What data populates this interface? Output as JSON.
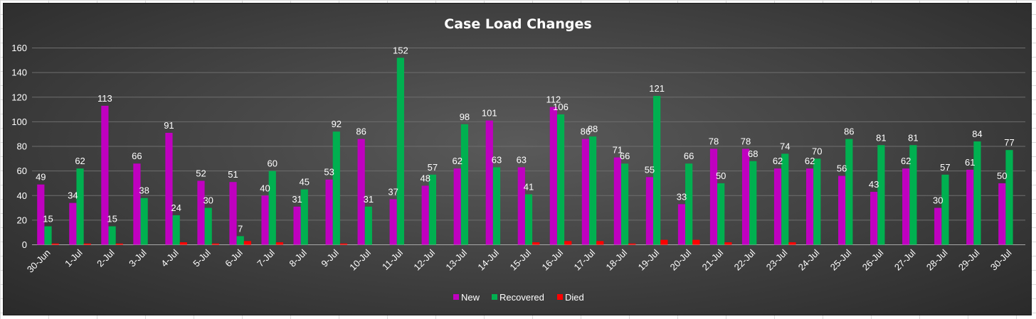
{
  "chart_data": {
    "type": "bar",
    "title": "Case Load Changes",
    "xlabel": "",
    "ylabel": "",
    "ylim": [
      0,
      160
    ],
    "yticks": [
      0,
      20,
      40,
      60,
      80,
      100,
      120,
      140,
      160
    ],
    "grid": "horizontal",
    "legend_position": "bottom",
    "categories": [
      "30-Jun",
      "1-Jul",
      "2-Jul",
      "3-Jul",
      "4-Jul",
      "5-Jul",
      "6-Jul",
      "7-Jul",
      "8-Jul",
      "9-Jul",
      "10-Jul",
      "11-Jul",
      "12-Jul",
      "13-Jul",
      "14-Jul",
      "15-Jul",
      "16-Jul",
      "17-Jul",
      "18-Jul",
      "19-Jul",
      "20-Jul",
      "21-Jul",
      "22-Jul",
      "23-Jul",
      "24-Jul",
      "25-Jul",
      "26-Jul",
      "27-Jul",
      "28-Jul",
      "29-Jul",
      "30-Jul"
    ],
    "series": [
      {
        "name": "New",
        "color": "#c000c0",
        "labeled": true,
        "values": [
          49,
          34,
          113,
          66,
          91,
          52,
          51,
          40,
          31,
          53,
          86,
          37,
          48,
          62,
          101,
          63,
          112,
          86,
          71,
          55,
          33,
          78,
          78,
          62,
          62,
          56,
          43,
          62,
          30,
          61,
          50
        ]
      },
      {
        "name": "Recovered",
        "color": "#00b050",
        "labeled": true,
        "values": [
          15,
          62,
          15,
          38,
          24,
          30,
          7,
          60,
          45,
          92,
          31,
          152,
          57,
          98,
          63,
          41,
          106,
          88,
          66,
          121,
          66,
          50,
          68,
          74,
          70,
          86,
          81,
          81,
          57,
          84,
          77
        ]
      },
      {
        "name": "Died",
        "color": "#ff0000",
        "labeled": false,
        "values": [
          1,
          1,
          1,
          0,
          2,
          1,
          3,
          2,
          0,
          1,
          0,
          0,
          0,
          0,
          0,
          2,
          3,
          3,
          1,
          4,
          4,
          2,
          0,
          2,
          0,
          0,
          0,
          0,
          0,
          0,
          0
        ]
      }
    ]
  }
}
